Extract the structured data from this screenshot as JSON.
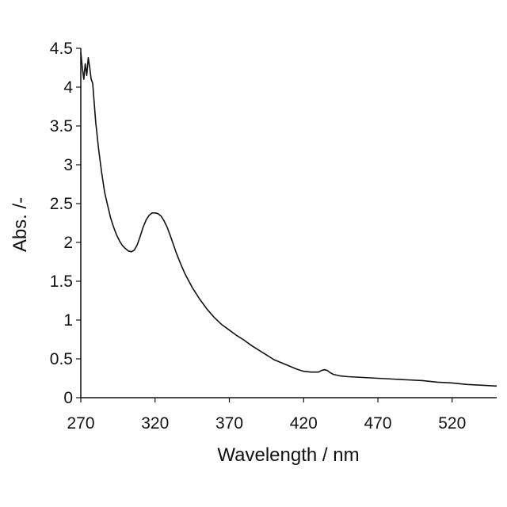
{
  "chart_data": {
    "type": "line",
    "title": "",
    "xlabel": "Wavelength  / nm",
    "ylabel": "Abs. /-",
    "xlim": [
      270,
      550
    ],
    "ylim": [
      0,
      4.5
    ],
    "x_ticks": [
      270,
      320,
      370,
      420,
      470,
      520
    ],
    "x_tick_labels": [
      "270",
      "320",
      "370",
      "420",
      "470",
      "520"
    ],
    "y_ticks": [
      0,
      0.5,
      1,
      1.5,
      2,
      2.5,
      3,
      3.5,
      4,
      4.5
    ],
    "y_tick_labels": [
      "0",
      "0.5",
      "1",
      "1.5",
      "2",
      "2.5",
      "3",
      "3.5",
      "4",
      "4.5"
    ],
    "grid": false,
    "legend": "none",
    "line_color": "#111111",
    "series": [
      {
        "x": [
          270,
          271,
          272,
          273,
          274,
          275,
          276,
          277,
          278,
          279,
          280,
          282,
          284,
          286,
          288,
          290,
          292,
          294,
          296,
          298,
          300,
          302,
          304,
          306,
          308,
          310,
          312,
          314,
          316,
          318,
          320,
          322,
          324,
          326,
          328,
          330,
          332,
          334,
          336,
          338,
          340,
          345,
          350,
          355,
          360,
          365,
          370,
          375,
          380,
          385,
          390,
          395,
          400,
          405,
          410,
          415,
          420,
          425,
          430,
          432,
          434,
          436,
          438,
          440,
          445,
          450,
          460,
          470,
          480,
          490,
          500,
          510,
          520,
          530,
          540,
          550
        ],
        "y": [
          4.45,
          4.25,
          4.1,
          4.3,
          4.15,
          4.38,
          4.25,
          4.1,
          4.05,
          3.8,
          3.55,
          3.2,
          2.9,
          2.65,
          2.48,
          2.32,
          2.2,
          2.1,
          2.02,
          1.96,
          1.92,
          1.89,
          1.88,
          1.9,
          1.97,
          2.08,
          2.2,
          2.29,
          2.35,
          2.38,
          2.38,
          2.37,
          2.34,
          2.28,
          2.2,
          2.1,
          1.99,
          1.88,
          1.78,
          1.69,
          1.6,
          1.42,
          1.27,
          1.14,
          1.03,
          0.94,
          0.87,
          0.8,
          0.74,
          0.67,
          0.61,
          0.55,
          0.49,
          0.45,
          0.41,
          0.37,
          0.34,
          0.33,
          0.33,
          0.35,
          0.36,
          0.35,
          0.32,
          0.3,
          0.28,
          0.27,
          0.26,
          0.25,
          0.24,
          0.23,
          0.22,
          0.2,
          0.19,
          0.17,
          0.16,
          0.15
        ]
      }
    ]
  }
}
